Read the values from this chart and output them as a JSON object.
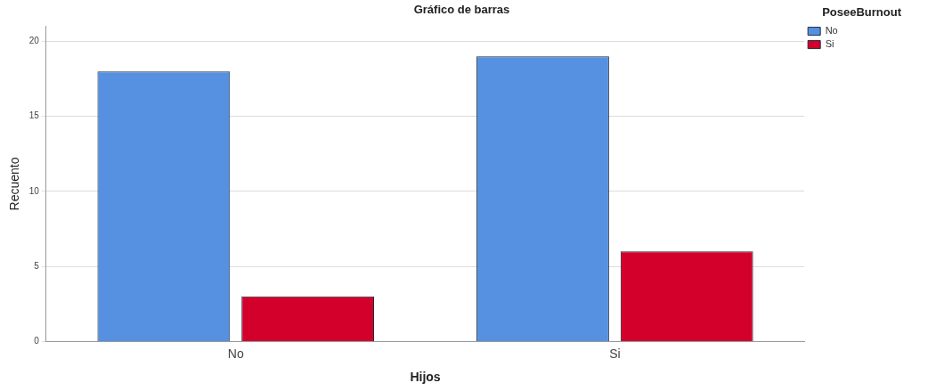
{
  "chart_data": {
    "type": "bar",
    "title": "Gráfico de barras",
    "xlabel": "Hijos",
    "ylabel": "Recuento",
    "legend_title": "PoseeBurnout",
    "categories": [
      "No",
      "Si"
    ],
    "series": [
      {
        "name": "No",
        "color": "#5591e0",
        "values": [
          18,
          19
        ]
      },
      {
        "name": "Si",
        "color": "#d4002c",
        "values": [
          3,
          6
        ]
      }
    ],
    "ylim": [
      0,
      21
    ],
    "yticks": [
      0,
      5,
      10,
      15,
      20
    ],
    "grid": "y",
    "legend": "top right"
  }
}
